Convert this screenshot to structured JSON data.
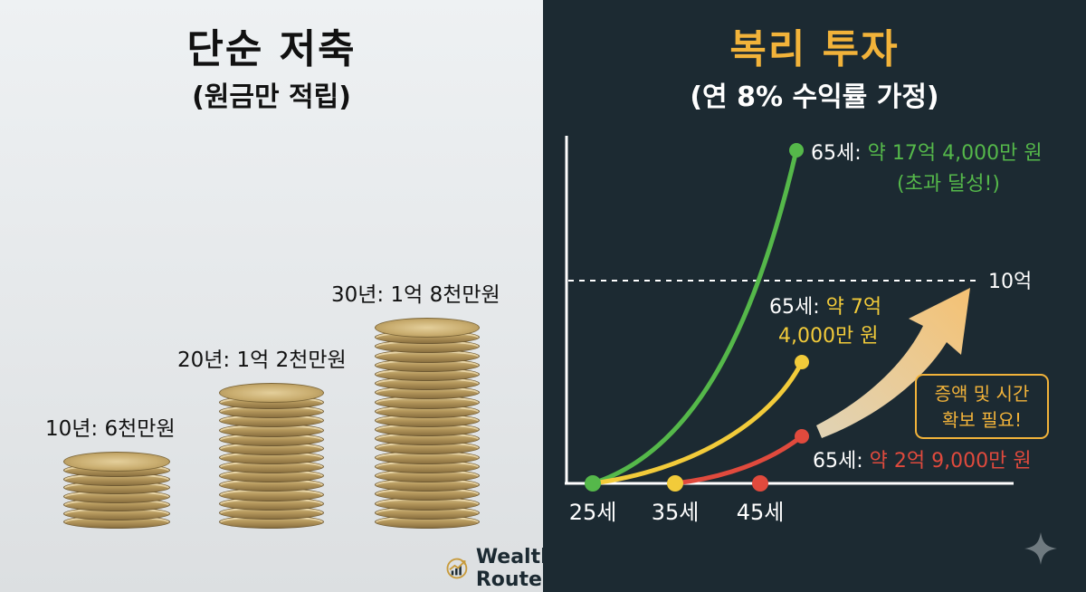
{
  "left_panel": {
    "title": "단순 저축",
    "subtitle": "(원금만 적립)",
    "stacks": [
      {
        "label": "10년: 6천만원",
        "coins": 7
      },
      {
        "label": "20년: 1억 2천만원",
        "coins": 14
      },
      {
        "label": "30년: 1억 8천만원",
        "coins": 21
      }
    ]
  },
  "right_panel": {
    "title": "복리 투자",
    "subtitle": "(연 8% 수익률 가정)"
  },
  "chart_data": {
    "type": "line",
    "x_ticks": [
      "25세",
      "35세",
      "45세"
    ],
    "reference_line": {
      "label": "10억",
      "value": 10
    },
    "series": [
      {
        "color": "#55b84a",
        "start_age": "25세",
        "end_age": "65세",
        "label_prefix": "65세: ",
        "label_value": "약 17억 4,000만 원",
        "label_note": "(초과 달성!)"
      },
      {
        "color": "#f2cb3a",
        "start_age": "25세",
        "end_age": "65세",
        "label_prefix": "65세: ",
        "label_value_line1": "약 7억",
        "label_value_line2": "4,000만 원"
      },
      {
        "color": "#e04a3d",
        "start_age": "45세",
        "end_age": "65세",
        "label_prefix": "65세: ",
        "label_value": "약 2억 9,000만 원"
      }
    ],
    "callout": "증액 및 시간\n확보 필요!",
    "callout_lines": [
      "증액 및 시간",
      "확보 필요!"
    ]
  },
  "brand": {
    "name": "Wealth Route"
  }
}
